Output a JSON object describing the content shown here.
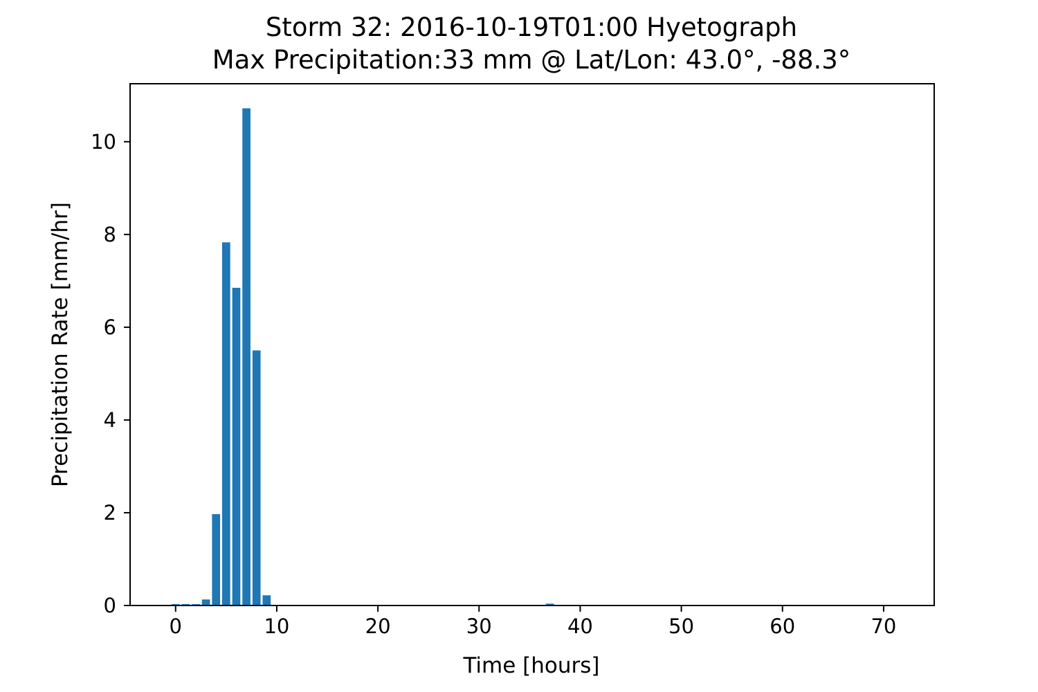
{
  "chart_data": {
    "type": "bar",
    "title": "Storm 32: 2016-10-19T01:00 Hyetograph",
    "subtitle": "Max Precipitation:33 mm @ Lat/Lon:  43.0°, -88.3°",
    "xlabel": "Time [hours]",
    "ylabel": "Precipitation Rate [mm/hr]",
    "xlim": [
      -4.5,
      75.0
    ],
    "ylim": [
      0,
      11.25
    ],
    "xticks": [
      0,
      10,
      20,
      30,
      40,
      50,
      60,
      70
    ],
    "yticks": [
      0,
      2,
      4,
      6,
      8,
      10
    ],
    "xtick_labels": [
      "0",
      "10",
      "20",
      "30",
      "40",
      "50",
      "60",
      "70"
    ],
    "ytick_labels": [
      "0",
      "2",
      "4",
      "6",
      "8",
      "10"
    ],
    "bar_width": 0.8,
    "bar_color": "#1f77b4",
    "grid": false,
    "series": [
      {
        "x": [
          0,
          1,
          2,
          3,
          4,
          5,
          6,
          7,
          8,
          9,
          37
        ],
        "values": [
          0.03,
          0.03,
          0.03,
          0.13,
          1.97,
          7.83,
          6.85,
          10.72,
          5.5,
          0.22,
          0.04
        ]
      }
    ]
  }
}
